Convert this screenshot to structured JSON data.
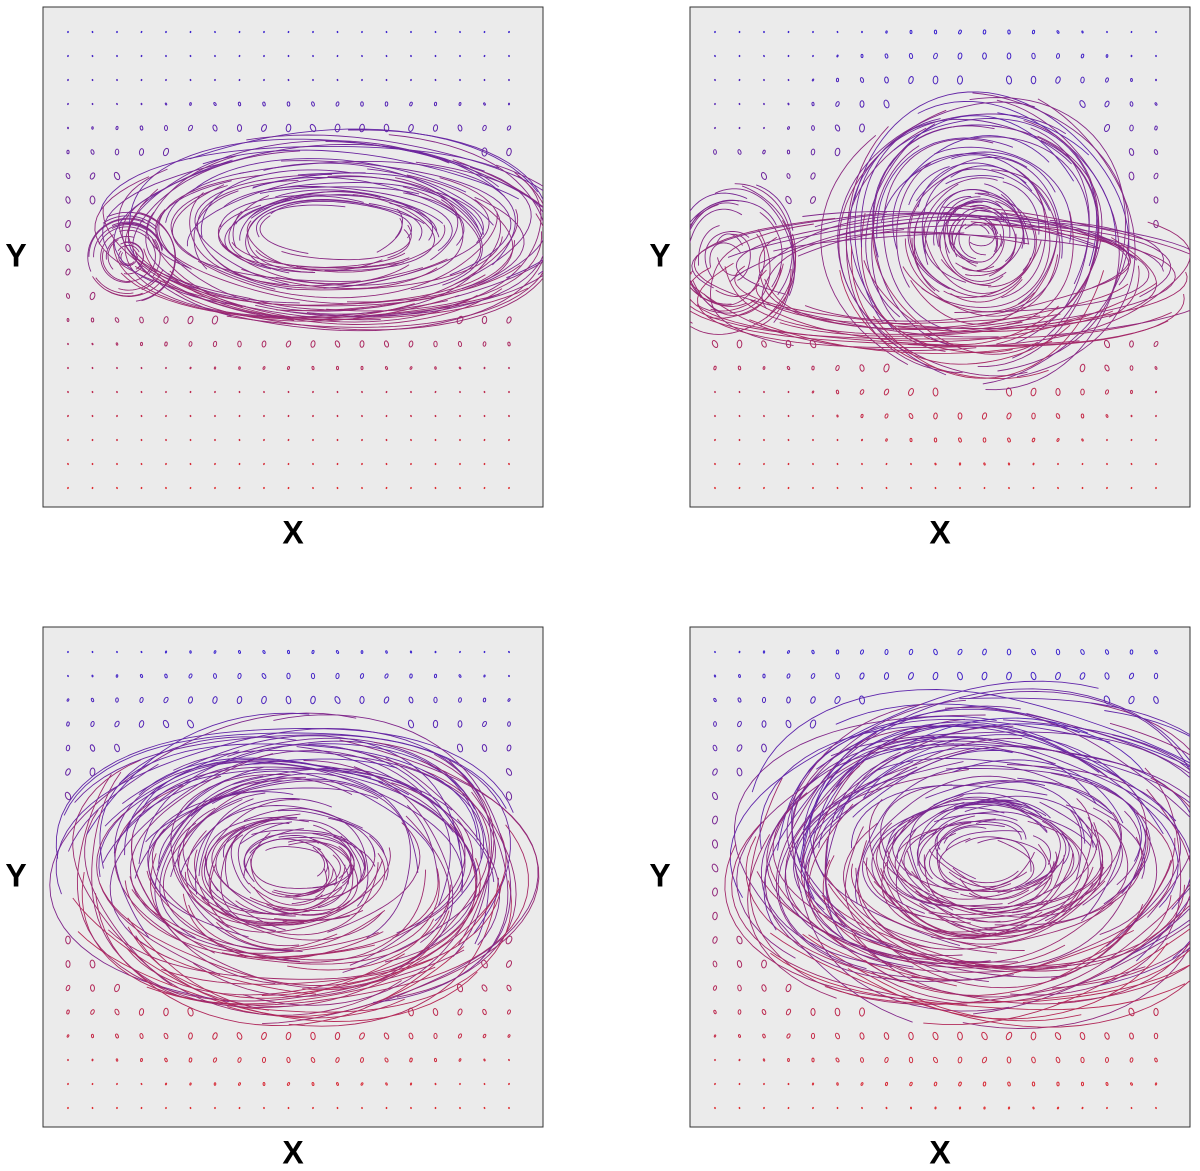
{
  "panels": [
    {
      "x_label": "X",
      "y_label": "Y"
    },
    {
      "x_label": "X",
      "y_label": "Y"
    },
    {
      "x_label": "X",
      "y_label": "Y"
    },
    {
      "x_label": "X",
      "y_label": "Y"
    }
  ]
}
